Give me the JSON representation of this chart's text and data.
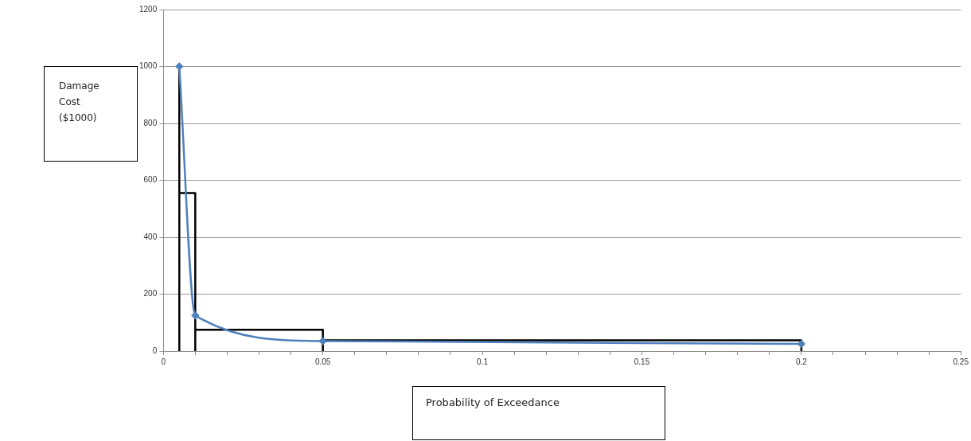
{
  "chart_data": {
    "type": "line",
    "xlabel": "Probability of Exceedance",
    "ylabel": "Damage Cost ($1000)",
    "series": [
      {
        "color": "#4f81bd",
        "marker": "diamond",
        "x": [
          0.005,
          0.01,
          0.05,
          0.2
        ],
        "values": [
          1000,
          125,
          35,
          25
        ]
      },
      {
        "color": "#000000",
        "marker": "none",
        "x": [
          0.005,
          0.005
        ],
        "values": [
          1000,
          0
        ]
      },
      {
        "color": "#000000",
        "marker": "none",
        "x": [
          0.005,
          0.01,
          0.01
        ],
        "values": [
          555,
          555,
          0
        ]
      },
      {
        "color": "#000000",
        "marker": "none",
        "x": [
          0.01,
          0.05,
          0.05
        ],
        "values": [
          75,
          75,
          0
        ]
      },
      {
        "color": "#000000",
        "marker": "none",
        "x": [
          0.05,
          0.2,
          0.2
        ],
        "values": [
          38,
          38,
          0
        ]
      }
    ],
    "xlim": [
      0,
      0.25
    ],
    "xticks": [
      0,
      {
        "value": 0.01,
        "label": null
      },
      {
        "value": 0.02,
        "label": null
      },
      {
        "value": 0.03,
        "label": null
      },
      {
        "value": 0.04,
        "label": null
      },
      0.05,
      {
        "value": 0.06,
        "label": null
      },
      {
        "value": 0.07,
        "label": null
      },
      {
        "value": 0.08,
        "label": null
      },
      {
        "value": 0.09,
        "label": null
      },
      0.1,
      {
        "value": 0.11,
        "label": null
      },
      {
        "value": 0.12,
        "label": null
      },
      {
        "value": 0.13,
        "label": null
      },
      {
        "value": 0.14,
        "label": null
      },
      0.15,
      {
        "value": 0.16,
        "label": null
      },
      {
        "value": 0.17,
        "label": null
      },
      {
        "value": 0.18,
        "label": null
      },
      {
        "value": 0.19,
        "label": null
      },
      0.2,
      {
        "value": 0.21,
        "label": null
      },
      {
        "value": 0.22,
        "label": null
      },
      {
        "value": 0.23,
        "label": null
      },
      {
        "value": 0.24,
        "label": null
      },
      0.25
    ],
    "ylim": [
      0,
      1200
    ],
    "yticks": [
      0,
      200,
      400,
      600,
      800,
      1000,
      1200
    ],
    "grid": "y",
    "legend": false
  }
}
